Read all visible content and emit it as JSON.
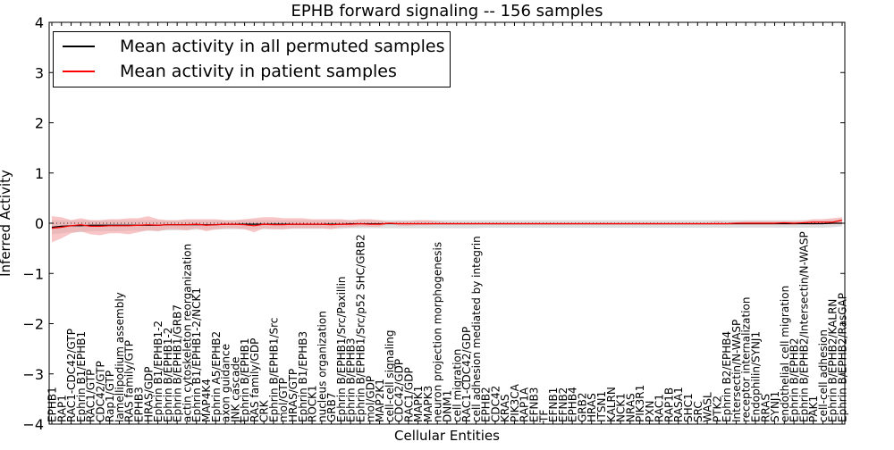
{
  "chart_data": {
    "type": "line",
    "title": "EPHB forward signaling -- 156 samples",
    "xlabel": "Cellular Entities",
    "ylabel": "Inferred Activity",
    "ylim": [
      -4,
      4
    ],
    "yticks": [
      "−4",
      "−3",
      "−2",
      "−1",
      "0",
      "1",
      "2",
      "3",
      "4"
    ],
    "grid": false,
    "legend_placement": "top-left",
    "categories": [
      "EPHB1",
      "RAP1",
      "RAC1-CDC42/GTP",
      "Ephrin B1/EPHB1",
      "RAC1/GTP",
      "CDC42/GTP",
      "Rap1/GTP",
      "lamellipodium assembly",
      "RAS family/GTP",
      "EPHB3",
      "HRAS/GDP",
      "Ephrin B1/EPHB1-2",
      "Ephrin B/EPHB1-2",
      "Ephrin B/EPHB1/GRB7",
      "actin cytoskeleton reorganization",
      "Ephrin B1/EPHB1-2/NCK1",
      "MAP4K4",
      "Ephrin A5/EPHB2",
      "axon guidance",
      "JNK cascade",
      "Ephrin B/EPHB1",
      "RAS family/GDP",
      "CRK",
      "Ephrin B/EPHB1/Src",
      "mol/GTP",
      "HRAS/GTP",
      "Ephrin B1/EPHB3",
      "ROCK1",
      "nucleus organization",
      "GRB7",
      "Ephrin B/EPHB1/Src/Paxillin",
      "Ephrin B/EPHB3",
      "Ephrin B/EPHB1/Src/p52 SHC/GRB2",
      "mol/GDP",
      "MAP2K1",
      "cell-cell signaling",
      "CDC42/GDP",
      "RAC1/GDP",
      "MAPK1",
      "MAPK3",
      "neuron projection morphogenesis",
      "DNM1",
      "cell migration",
      "RAC1-CDC42/GDP",
      "cell adhesion mediated by integrin",
      "EPHB2",
      "CDC42",
      "KRAS",
      "PIK3CA",
      "RAP1A",
      "EFNB3",
      "TF",
      "EFNB1",
      "EFNB2",
      "EPHB4",
      "GRB2",
      "HRAS",
      "ITSN1",
      "KALRN",
      "NCK1",
      "NRAS",
      "PIK3R1",
      "PXN",
      "RAC1",
      "RAP1B",
      "RASA1",
      "SHC1",
      "SRC",
      "WASL",
      "PTK2",
      "Ephrin B2/EPHB4",
      "Intersectin/N-WASP",
      "receptor internalization",
      "Endophilin/SYNJ1",
      "RRAS",
      "SYNJ1",
      "endothelial cell migration",
      "Ephrin B/EPHB2",
      "Ephrin B/EPHB2/Intersectin/N-WASP",
      "PAK1",
      "cell-cell adhesion",
      "Ephrin B/EPHB2/KALRN",
      "Ephrin B/EPHB2/RasGAP"
    ],
    "series": [
      {
        "name": "Mean activity in all permuted samples",
        "color": "#000000",
        "band_color": "#d3d3d3",
        "values": [
          -0.08,
          -0.06,
          -0.05,
          -0.05,
          -0.04,
          -0.04,
          -0.04,
          -0.04,
          -0.04,
          -0.04,
          -0.04,
          -0.04,
          -0.03,
          -0.03,
          -0.03,
          -0.03,
          -0.03,
          -0.03,
          -0.02,
          -0.02,
          -0.02,
          -0.02,
          -0.02,
          -0.02,
          -0.02,
          -0.02,
          -0.02,
          -0.02,
          -0.02,
          -0.02,
          -0.02,
          -0.01,
          -0.01,
          -0.01,
          -0.01,
          -0.01,
          -0.01,
          -0.01,
          -0.01,
          -0.01,
          -0.01,
          -0.01,
          -0.01,
          -0.01,
          -0.01,
          -0.01,
          -0.01,
          -0.01,
          -0.01,
          -0.01,
          -0.01,
          -0.01,
          -0.01,
          -0.01,
          -0.01,
          -0.01,
          -0.01,
          -0.01,
          -0.01,
          -0.01,
          -0.01,
          -0.01,
          -0.01,
          -0.01,
          -0.01,
          -0.01,
          -0.01,
          -0.01,
          -0.01,
          -0.01,
          -0.01,
          -0.01,
          -0.01,
          -0.01,
          -0.01,
          -0.01,
          -0.01,
          -0.01,
          -0.01,
          -0.01,
          -0.01,
          0.0,
          0.0
        ],
        "lower": [
          -0.22,
          -0.2,
          -0.18,
          -0.18,
          -0.16,
          -0.16,
          -0.16,
          -0.16,
          -0.15,
          -0.15,
          -0.15,
          -0.15,
          -0.14,
          -0.14,
          -0.14,
          -0.13,
          -0.13,
          -0.13,
          -0.12,
          -0.12,
          -0.12,
          -0.12,
          -0.12,
          -0.12,
          -0.12,
          -0.11,
          -0.11,
          -0.11,
          -0.11,
          -0.11,
          -0.11,
          -0.1,
          -0.1,
          -0.1,
          -0.1,
          -0.1,
          -0.1,
          -0.1,
          -0.1,
          -0.1,
          -0.1,
          -0.1,
          -0.1,
          -0.1,
          -0.1,
          -0.09,
          -0.09,
          -0.09,
          -0.09,
          -0.09,
          -0.09,
          -0.09,
          -0.09,
          -0.09,
          -0.09,
          -0.09,
          -0.09,
          -0.09,
          -0.09,
          -0.09,
          -0.09,
          -0.09,
          -0.09,
          -0.09,
          -0.09,
          -0.09,
          -0.09,
          -0.09,
          -0.09,
          -0.09,
          -0.09,
          -0.09,
          -0.09,
          -0.09,
          -0.09,
          -0.09,
          -0.09,
          -0.09,
          -0.09,
          -0.09,
          -0.09,
          -0.08,
          -0.06
        ],
        "upper": [
          0.06,
          0.06,
          0.06,
          0.06,
          0.06,
          0.06,
          0.06,
          0.06,
          0.06,
          0.06,
          0.06,
          0.06,
          0.06,
          0.06,
          0.06,
          0.06,
          0.06,
          0.06,
          0.06,
          0.06,
          0.06,
          0.06,
          0.06,
          0.06,
          0.06,
          0.06,
          0.06,
          0.06,
          0.06,
          0.06,
          0.06,
          0.06,
          0.06,
          0.06,
          0.06,
          0.06,
          0.06,
          0.06,
          0.06,
          0.06,
          0.06,
          0.06,
          0.06,
          0.06,
          0.06,
          0.06,
          0.06,
          0.06,
          0.06,
          0.06,
          0.06,
          0.06,
          0.06,
          0.06,
          0.06,
          0.06,
          0.06,
          0.06,
          0.06,
          0.06,
          0.06,
          0.06,
          0.06,
          0.06,
          0.06,
          0.06,
          0.06,
          0.06,
          0.06,
          0.06,
          0.06,
          0.06,
          0.06,
          0.06,
          0.06,
          0.06,
          0.06,
          0.06,
          0.06,
          0.06,
          0.06,
          0.07,
          0.08
        ]
      },
      {
        "name": "Mean activity in patient samples",
        "color": "#ff0000",
        "band_color": "#f4a0a0",
        "values": [
          -0.1,
          -0.08,
          -0.05,
          -0.03,
          -0.06,
          -0.06,
          -0.05,
          -0.05,
          -0.05,
          -0.04,
          -0.03,
          -0.04,
          -0.03,
          -0.03,
          -0.03,
          -0.02,
          -0.04,
          -0.03,
          -0.02,
          -0.02,
          -0.03,
          -0.05,
          -0.02,
          -0.03,
          -0.03,
          -0.02,
          -0.02,
          -0.02,
          -0.02,
          -0.03,
          -0.02,
          -0.02,
          -0.01,
          -0.02,
          -0.02,
          0.0,
          -0.01,
          -0.01,
          -0.01,
          -0.01,
          -0.01,
          -0.01,
          -0.01,
          -0.01,
          -0.01,
          -0.01,
          -0.01,
          -0.01,
          -0.01,
          -0.01,
          -0.01,
          -0.01,
          -0.01,
          -0.01,
          -0.01,
          -0.01,
          -0.01,
          -0.01,
          -0.01,
          -0.01,
          -0.01,
          -0.01,
          -0.01,
          -0.01,
          -0.01,
          -0.01,
          -0.01,
          -0.01,
          -0.01,
          -0.01,
          -0.01,
          0.0,
          0.0,
          0.0,
          0.0,
          0.0,
          0.01,
          0.0,
          0.01,
          0.02,
          0.02,
          0.02,
          0.06
        ],
        "lower": [
          -0.38,
          -0.3,
          -0.2,
          -0.16,
          -0.22,
          -0.24,
          -0.2,
          -0.2,
          -0.22,
          -0.18,
          -0.14,
          -0.16,
          -0.12,
          -0.12,
          -0.14,
          -0.1,
          -0.16,
          -0.12,
          -0.1,
          -0.1,
          -0.12,
          -0.18,
          -0.1,
          -0.12,
          -0.12,
          -0.1,
          -0.1,
          -0.1,
          -0.1,
          -0.12,
          -0.08,
          -0.08,
          -0.06,
          -0.07,
          -0.07,
          -0.01,
          -0.05,
          -0.05,
          -0.04,
          -0.04,
          -0.03,
          -0.03,
          -0.03,
          -0.03,
          -0.03,
          -0.03,
          -0.03,
          -0.03,
          -0.03,
          -0.03,
          -0.03,
          -0.03,
          -0.03,
          -0.03,
          -0.03,
          -0.03,
          -0.03,
          -0.03,
          -0.03,
          -0.03,
          -0.03,
          -0.03,
          -0.03,
          -0.03,
          -0.03,
          -0.03,
          -0.03,
          -0.03,
          -0.03,
          -0.03,
          -0.03,
          -0.03,
          -0.03,
          -0.03,
          -0.03,
          -0.03,
          -0.03,
          -0.03,
          -0.02,
          -0.03,
          -0.02,
          -0.02,
          -0.02
        ],
        "upper": [
          0.14,
          0.12,
          0.06,
          0.1,
          0.06,
          0.06,
          0.08,
          0.08,
          0.1,
          0.1,
          0.14,
          0.08,
          0.06,
          0.06,
          0.08,
          0.08,
          0.08,
          0.08,
          0.06,
          0.06,
          0.08,
          0.1,
          0.12,
          0.12,
          0.1,
          0.1,
          0.1,
          0.08,
          0.08,
          0.08,
          0.08,
          0.06,
          0.08,
          0.08,
          0.06,
          0.02,
          0.04,
          0.04,
          0.06,
          0.06,
          0.04,
          0.02,
          0.02,
          0.02,
          0.02,
          0.02,
          0.02,
          0.02,
          0.02,
          0.02,
          0.02,
          0.02,
          0.02,
          0.02,
          0.02,
          0.02,
          0.02,
          0.02,
          0.02,
          0.02,
          0.02,
          0.02,
          0.02,
          0.02,
          0.02,
          0.02,
          0.02,
          0.02,
          0.02,
          0.04,
          0.02,
          0.02,
          0.04,
          0.04,
          0.04,
          0.04,
          0.04,
          0.04,
          0.05,
          0.08,
          0.08,
          0.1,
          0.12
        ]
      }
    ]
  }
}
